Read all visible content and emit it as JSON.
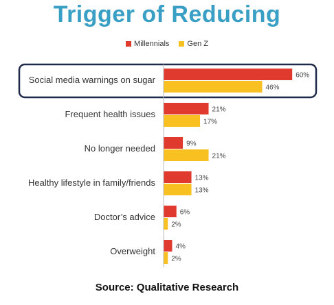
{
  "chart_data": {
    "type": "bar",
    "orientation": "horizontal",
    "title": "Trigger of Reducing",
    "categories": [
      "Social media warnings on sugar",
      "Frequent health issues",
      "No longer needed",
      "Healthy lifestyle in family/friends",
      "Doctor’s advice",
      "Overweight"
    ],
    "series": [
      {
        "name": "Millennials",
        "color": "#e03a2f",
        "values": [
          60,
          21,
          9,
          13,
          6,
          4
        ]
      },
      {
        "name": "Gen Z",
        "color": "#f8c020",
        "values": [
          46,
          17,
          21,
          13,
          2,
          2
        ]
      }
    ],
    "value_suffix": "%",
    "xlim": [
      0,
      60
    ],
    "legend_position": "top",
    "highlighted_category": "Social media warnings on sugar",
    "grid": false
  },
  "footer": {
    "source": "Source: Qualitative Research"
  }
}
